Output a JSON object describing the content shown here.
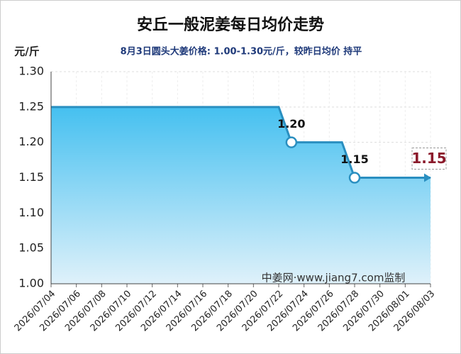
{
  "chart_data": {
    "type": "area-line",
    "title": "安丘一般泥姜每日均价走势",
    "y_unit": "元/斤",
    "subtitle": "8月3日圆头大姜价格: 1.00-1.30元/斤，较昨日均价 持平",
    "watermark": "中姜网·www.jiang7.com监制",
    "categories": [
      "2026/07/04",
      null,
      "2026/07/06",
      null,
      "2026/07/08",
      null,
      "2026/07/10",
      null,
      "2026/07/12",
      null,
      "2026/07/14",
      null,
      "2026/07/16",
      null,
      "2026/07/18",
      null,
      "2026/07/20",
      null,
      "2026/07/22",
      null,
      "2026/07/24",
      null,
      "2026/07/26",
      null,
      "2026/07/28",
      null,
      "2026/07/30",
      null,
      "2026/08/01",
      null,
      "2026/08/03"
    ],
    "values": [
      1.25,
      1.25,
      1.25,
      1.25,
      1.25,
      1.25,
      1.25,
      1.25,
      1.25,
      1.25,
      1.25,
      1.25,
      1.25,
      1.25,
      1.25,
      1.25,
      1.25,
      1.25,
      1.25,
      1.2,
      1.2,
      1.2,
      1.2,
      1.2,
      1.15,
      1.15,
      1.15,
      1.15,
      1.15,
      1.15,
      1.15
    ],
    "value_labels": [
      null,
      null,
      null,
      null,
      null,
      null,
      null,
      null,
      null,
      null,
      null,
      null,
      null,
      null,
      null,
      null,
      null,
      null,
      null,
      "1.20",
      null,
      null,
      null,
      null,
      "1.15",
      null,
      null,
      null,
      null,
      null,
      "1.15"
    ],
    "color": "#2a8fc0",
    "fill_top": "#45c0f0",
    "fill_bottom": "#dff1fa",
    "ylim": [
      1.0,
      1.3
    ],
    "yticks": [
      {
        "value": 1.0,
        "label": "1.00"
      },
      {
        "value": 1.05,
        "label": "1.05"
      },
      {
        "value": 1.1,
        "label": "1.10"
      },
      {
        "value": 1.15,
        "label": "1.15"
      },
      {
        "value": 1.2,
        "label": "1.20"
      },
      {
        "value": 1.25,
        "label": "1.25"
      },
      {
        "value": 1.3,
        "label": "1.30"
      }
    ],
    "grid": true
  }
}
